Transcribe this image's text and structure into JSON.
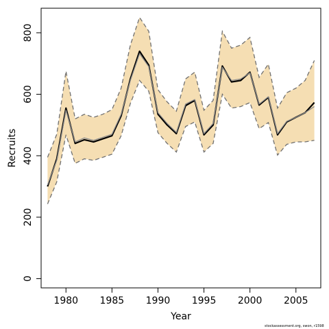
{
  "chart_data": {
    "type": "line",
    "xlabel": "Year",
    "ylabel": "Recruits",
    "xlim": [
      1977.3,
      2007.7
    ],
    "ylim": [
      -30,
      880
    ],
    "x_ticks": [
      1980,
      1985,
      1990,
      1995,
      2000,
      2005
    ],
    "y_ticks": [
      0,
      200,
      400,
      600,
      800
    ],
    "grid": false,
    "x": [
      1978,
      1979,
      1980,
      1981,
      1982,
      1983,
      1984,
      1985,
      1986,
      1987,
      1988,
      1989,
      1990,
      1991,
      1992,
      1993,
      1994,
      1995,
      1996,
      1997,
      1998,
      1999,
      2000,
      2001,
      2002,
      2003,
      2004,
      2005,
      2006,
      2007
    ],
    "series": [
      {
        "role": "estimate",
        "values": [
          300,
          390,
          555,
          440,
          452,
          445,
          455,
          465,
          530,
          650,
          740,
          695,
          535,
          500,
          472,
          563,
          580,
          468,
          500,
          692,
          640,
          645,
          672,
          565,
          590,
          468,
          510,
          525,
          540,
          573
        ]
      },
      {
        "role": "median",
        "values": [
          305,
          385,
          548,
          445,
          458,
          450,
          460,
          470,
          535,
          645,
          732,
          690,
          540,
          505,
          476,
          568,
          583,
          472,
          505,
          688,
          645,
          650,
          670,
          568,
          592,
          472,
          512,
          525,
          540,
          560
        ]
      },
      {
        "role": "upper-interval",
        "values": [
          395,
          470,
          675,
          520,
          535,
          525,
          535,
          550,
          620,
          760,
          850,
          805,
          615,
          575,
          545,
          650,
          672,
          548,
          580,
          805,
          750,
          760,
          785,
          655,
          698,
          555,
          605,
          620,
          645,
          710
        ]
      },
      {
        "role": "lower-interval",
        "values": [
          243,
          315,
          468,
          375,
          390,
          385,
          395,
          405,
          465,
          570,
          645,
          610,
          475,
          440,
          412,
          495,
          510,
          412,
          440,
          600,
          555,
          560,
          573,
          488,
          508,
          402,
          437,
          445,
          445,
          450
        ]
      }
    ],
    "colors": {
      "band": "#f5deb3",
      "estimate": "#000000",
      "median": "#8c8c8c",
      "interval": "#707070"
    }
  },
  "credit": "stockassessment.org, swon, r1598"
}
